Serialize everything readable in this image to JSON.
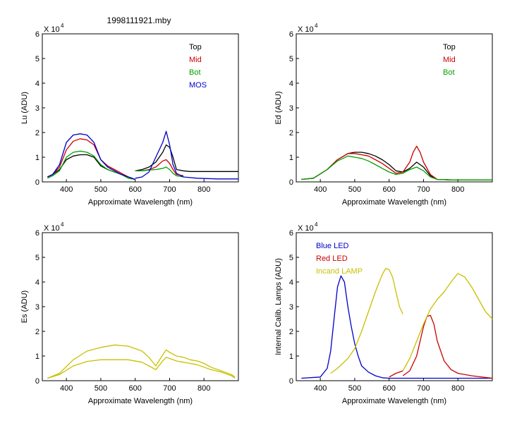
{
  "figure_title": "1998111921.mby",
  "chart_data": [
    {
      "type": "line",
      "ylabel": "Lu (ADU)",
      "xlabel": "Approximate Wavelength (nm)",
      "multiplier": "X 10",
      "exponent": "4",
      "xlim": [
        330,
        900
      ],
      "ylim": [
        0,
        6
      ],
      "xticks": [
        400,
        500,
        600,
        700,
        800
      ],
      "yticks": [
        0,
        1,
        2,
        3,
        4,
        5,
        6
      ],
      "legend": [
        {
          "name": "Top",
          "color": "#000000"
        },
        {
          "name": "Mid",
          "color": "#cc0000"
        },
        {
          "name": "Bot",
          "color": "#00a000"
        },
        {
          "name": "MOS",
          "color": "#0000cc"
        }
      ],
      "series": [
        {
          "name": "Top",
          "color": "#000000",
          "segments": [
            {
              "x": [
                345,
                360,
                380,
                400,
                420,
                440,
                460,
                480,
                500,
                520,
                540,
                560,
                580,
                600
              ],
              "y": [
                0.2,
                0.3,
                0.5,
                0.9,
                1.05,
                1.1,
                1.1,
                1.0,
                0.65,
                0.5,
                0.4,
                0.3,
                0.2,
                0.1
              ]
            },
            {
              "x": [
                600,
                620,
                640,
                660,
                680,
                690,
                700,
                710,
                720,
                740,
                760,
                800,
                840,
                900
              ],
              "y": [
                0.45,
                0.5,
                0.6,
                0.8,
                1.2,
                1.5,
                1.4,
                1.0,
                0.5,
                0.45,
                0.42,
                0.42,
                0.42,
                0.42
              ]
            }
          ]
        },
        {
          "name": "Mid",
          "color": "#cc0000",
          "segments": [
            {
              "x": [
                345,
                360,
                380,
                400,
                420,
                440,
                460,
                480,
                500,
                520,
                540,
                560,
                580,
                600
              ],
              "y": [
                0.2,
                0.3,
                0.6,
                1.3,
                1.65,
                1.75,
                1.7,
                1.5,
                0.9,
                0.65,
                0.5,
                0.35,
                0.2,
                0.1
              ]
            },
            {
              "x": [
                600,
                620,
                640,
                660,
                680,
                690,
                700,
                710,
                720,
                740
              ],
              "y": [
                0.45,
                0.45,
                0.5,
                0.6,
                0.85,
                0.9,
                0.75,
                0.5,
                0.3,
                0.25
              ]
            }
          ]
        },
        {
          "name": "Bot",
          "color": "#00a000",
          "segments": [
            {
              "x": [
                345,
                360,
                380,
                400,
                420,
                440,
                460,
                480,
                500,
                520,
                540,
                560,
                580,
                600
              ],
              "y": [
                0.15,
                0.25,
                0.45,
                1.0,
                1.2,
                1.25,
                1.2,
                1.05,
                0.7,
                0.5,
                0.4,
                0.3,
                0.15,
                0.1
              ]
            },
            {
              "x": [
                600,
                620,
                640,
                660,
                680,
                690,
                700,
                710,
                720,
                740
              ],
              "y": [
                0.45,
                0.45,
                0.48,
                0.5,
                0.55,
                0.6,
                0.5,
                0.35,
                0.25,
                0.2
              ]
            }
          ]
        },
        {
          "name": "MOS",
          "color": "#0000cc",
          "segments": [
            {
              "x": [
                345,
                360,
                380,
                400,
                420,
                440,
                460,
                480,
                500,
                520,
                540,
                560,
                580,
                600
              ],
              "y": [
                0.2,
                0.3,
                0.7,
                1.6,
                1.9,
                1.95,
                1.9,
                1.6,
                0.9,
                0.6,
                0.45,
                0.3,
                0.2,
                0.1
              ]
            },
            {
              "x": [
                600,
                620,
                640,
                660,
                680,
                690,
                700,
                710,
                720,
                740,
                780,
                840,
                900
              ],
              "y": [
                0.15,
                0.2,
                0.4,
                1.0,
                1.6,
                2.05,
                1.5,
                0.7,
                0.35,
                0.2,
                0.15,
                0.12,
                0.12
              ]
            }
          ]
        }
      ]
    },
    {
      "type": "line",
      "ylabel": "Ed  (ADU)",
      "xlabel": "Approximate Wavelength (nm)",
      "multiplier": "X 10",
      "exponent": "4",
      "xlim": [
        330,
        900
      ],
      "ylim": [
        0,
        6
      ],
      "xticks": [
        400,
        500,
        600,
        700,
        800
      ],
      "yticks": [
        0,
        1,
        2,
        3,
        4,
        5,
        6
      ],
      "legend": [
        {
          "name": "Top",
          "color": "#000000"
        },
        {
          "name": "Mid",
          "color": "#cc0000"
        },
        {
          "name": "Bot",
          "color": "#00a000"
        }
      ],
      "series": [
        {
          "name": "Top",
          "color": "#000000",
          "segments": [
            {
              "x": [
                345,
                380,
                420,
                450,
                480,
                500,
                520,
                540,
                560,
                580,
                600,
                620,
                640,
                660,
                680,
                700,
                720,
                740,
                780,
                840,
                900
              ],
              "y": [
                0.1,
                0.15,
                0.5,
                0.9,
                1.15,
                1.2,
                1.2,
                1.15,
                1.05,
                0.9,
                0.7,
                0.45,
                0.4,
                0.55,
                0.8,
                0.6,
                0.25,
                0.1,
                0.08,
                0.08,
                0.08
              ]
            }
          ]
        },
        {
          "name": "Mid",
          "color": "#cc0000",
          "segments": [
            {
              "x": [
                345,
                380,
                420,
                450,
                480,
                500,
                520,
                540,
                560,
                580,
                600,
                620,
                640,
                660,
                670,
                680,
                690,
                700,
                720,
                740,
                780,
                840,
                900
              ],
              "y": [
                0.1,
                0.15,
                0.5,
                0.9,
                1.15,
                1.15,
                1.1,
                1.05,
                0.9,
                0.75,
                0.55,
                0.35,
                0.4,
                0.8,
                1.2,
                1.45,
                1.2,
                0.8,
                0.3,
                0.1,
                0.08,
                0.08,
                0.08
              ]
            }
          ]
        },
        {
          "name": "Bot",
          "color": "#00a000",
          "segments": [
            {
              "x": [
                345,
                380,
                420,
                450,
                480,
                500,
                520,
                540,
                560,
                580,
                600,
                620,
                640,
                660,
                680,
                700,
                720,
                740,
                780,
                840,
                900
              ],
              "y": [
                0.1,
                0.15,
                0.5,
                0.85,
                1.05,
                1.0,
                0.95,
                0.85,
                0.7,
                0.55,
                0.4,
                0.3,
                0.35,
                0.5,
                0.6,
                0.45,
                0.2,
                0.1,
                0.08,
                0.08,
                0.08
              ]
            }
          ]
        }
      ]
    },
    {
      "type": "line",
      "ylabel": "Es  (ADU)",
      "xlabel": "Approximate Wavelength (nm)",
      "multiplier": "X 10",
      "exponent": "4",
      "xlim": [
        330,
        900
      ],
      "ylim": [
        0,
        6
      ],
      "xticks": [
        400,
        500,
        600,
        700,
        800
      ],
      "yticks": [
        0,
        1,
        2,
        3,
        4,
        5,
        6
      ],
      "legend": [],
      "series": [
        {
          "name": "Es",
          "color": "#c8c000",
          "segments": [
            {
              "x": [
                345,
                380,
                420,
                460,
                500,
                540,
                580,
                620,
                640,
                660,
                680,
                690,
                700,
                720,
                740,
                760,
                780,
                800,
                820,
                850,
                880,
                890
              ],
              "y": [
                0.1,
                0.3,
                0.85,
                1.2,
                1.35,
                1.45,
                1.4,
                1.2,
                0.95,
                0.6,
                1.05,
                1.25,
                1.15,
                1.0,
                0.95,
                0.85,
                0.8,
                0.7,
                0.55,
                0.4,
                0.25,
                0.15
              ]
            },
            {
              "x": [
                345,
                380,
                420,
                460,
                500,
                540,
                580,
                620,
                640,
                660,
                680,
                690,
                700,
                720,
                740,
                760,
                780,
                800,
                820,
                850,
                880,
                890
              ],
              "y": [
                0.1,
                0.25,
                0.6,
                0.78,
                0.85,
                0.85,
                0.85,
                0.75,
                0.6,
                0.45,
                0.8,
                0.95,
                0.9,
                0.8,
                0.75,
                0.7,
                0.65,
                0.55,
                0.45,
                0.35,
                0.2,
                0.1
              ]
            }
          ]
        }
      ]
    },
    {
      "type": "line",
      "ylabel": "Internal Calib. Lamps (ADU)",
      "xlabel": "Approximate Wavelength (nm)",
      "multiplier": "X 10",
      "exponent": "4",
      "xlim": [
        330,
        900
      ],
      "ylim": [
        0,
        6
      ],
      "xticks": [
        400,
        500,
        600,
        700,
        800
      ],
      "yticks": [
        0,
        1,
        2,
        3,
        4,
        5,
        6
      ],
      "legend": [
        {
          "name": "Blue LED",
          "color": "#0000cc"
        },
        {
          "name": "Red LED",
          "color": "#cc0000"
        },
        {
          "name": "Incand LAMP",
          "color": "#c8c000"
        }
      ],
      "series": [
        {
          "name": "Blue LED",
          "color": "#0000cc",
          "segments": [
            {
              "x": [
                345,
                400,
                420,
                430,
                440,
                450,
                460,
                470,
                480,
                490,
                500,
                510,
                520,
                540,
                560,
                580,
                600,
                640,
                700,
                800,
                900
              ],
              "y": [
                0.1,
                0.15,
                0.5,
                1.2,
                2.5,
                3.8,
                4.25,
                4.0,
                3.0,
                2.2,
                1.5,
                1.0,
                0.6,
                0.35,
                0.2,
                0.12,
                0.1,
                0.1,
                0.1,
                0.1,
                0.1
              ]
            }
          ]
        },
        {
          "name": "Red LED",
          "color": "#cc0000",
          "segments": [
            {
              "x": [
                600,
                620,
                640
              ],
              "y": [
                0.15,
                0.3,
                0.4
              ]
            },
            {
              "x": [
                640,
                660,
                680,
                690,
                700,
                710,
                720,
                730,
                740,
                760,
                780,
                800,
                840,
                900
              ],
              "y": [
                0.2,
                0.4,
                1.0,
                1.6,
                2.2,
                2.6,
                2.65,
                2.3,
                1.6,
                0.8,
                0.45,
                0.3,
                0.2,
                0.1
              ]
            }
          ]
        },
        {
          "name": "Incand LAMP",
          "color": "#c8c000",
          "segments": [
            {
              "x": [
                430,
                450,
                480,
                500,
                520,
                540,
                560,
                580,
                590,
                600,
                610,
                620,
                630,
                640
              ],
              "y": [
                0.3,
                0.5,
                0.9,
                1.3,
                2.0,
                2.8,
                3.6,
                4.3,
                4.55,
                4.5,
                4.2,
                3.6,
                3.0,
                2.7
              ]
            },
            {
              "x": [
                640,
                660,
                680,
                700,
                720,
                740,
                760,
                780,
                800,
                820,
                840,
                860,
                880,
                900
              ],
              "y": [
                0.4,
                0.9,
                1.6,
                2.3,
                2.9,
                3.3,
                3.6,
                4.0,
                4.35,
                4.2,
                3.8,
                3.3,
                2.8,
                2.5
              ]
            }
          ]
        }
      ]
    }
  ]
}
